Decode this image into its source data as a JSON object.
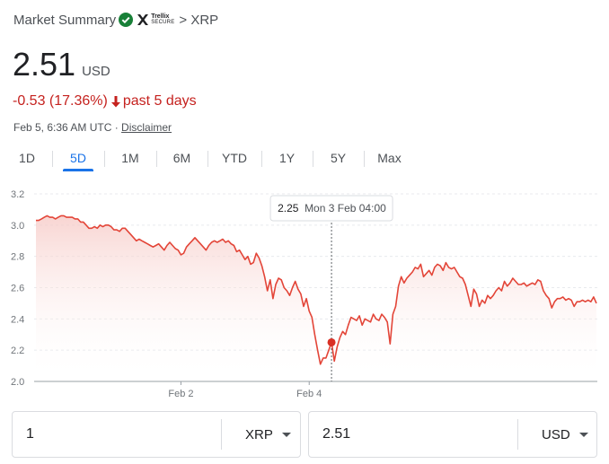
{
  "header": {
    "title": "Market Summary",
    "brand_line1": "Trellix",
    "brand_line2": "SECURE",
    "crumb": "> XRP"
  },
  "quote": {
    "price": "2.51",
    "currency": "USD",
    "change": "-0.53 (17.36%)",
    "period": "past 5 days",
    "timestamp": "Feb 5, 6:36 AM UTC · ",
    "disclaimer": "Disclaimer"
  },
  "tabs": [
    {
      "label": "1D",
      "selected": false
    },
    {
      "label": "5D",
      "selected": true
    },
    {
      "label": "1M",
      "selected": false
    },
    {
      "label": "6M",
      "selected": false
    },
    {
      "label": "YTD",
      "selected": false
    },
    {
      "label": "1Y",
      "selected": false
    },
    {
      "label": "5Y",
      "selected": false
    },
    {
      "label": "Max",
      "selected": false
    }
  ],
  "chart_data": {
    "type": "area",
    "y_ticks": [
      "3.2",
      "3.0",
      "2.8",
      "2.6",
      "2.4",
      "2.2",
      "2.0"
    ],
    "ylim": [
      2.0,
      3.2
    ],
    "x_ticks": [
      {
        "label": "Feb 2",
        "index": 52
      },
      {
        "label": "Feb 4",
        "index": 98
      }
    ],
    "values": [
      3.03,
      3.03,
      3.04,
      3.05,
      3.06,
      3.05,
      3.05,
      3.04,
      3.05,
      3.06,
      3.06,
      3.05,
      3.05,
      3.05,
      3.04,
      3.04,
      3.02,
      3.02,
      3.0,
      2.98,
      2.98,
      2.99,
      2.98,
      3.0,
      2.99,
      3.0,
      3.0,
      2.99,
      2.97,
      2.97,
      2.96,
      2.98,
      2.98,
      2.96,
      2.94,
      2.92,
      2.9,
      2.91,
      2.9,
      2.89,
      2.88,
      2.87,
      2.86,
      2.87,
      2.88,
      2.86,
      2.84,
      2.87,
      2.89,
      2.87,
      2.85,
      2.84,
      2.81,
      2.82,
      2.86,
      2.88,
      2.9,
      2.92,
      2.9,
      2.88,
      2.86,
      2.84,
      2.87,
      2.89,
      2.9,
      2.89,
      2.9,
      2.91,
      2.89,
      2.9,
      2.88,
      2.87,
      2.83,
      2.84,
      2.81,
      2.78,
      2.8,
      2.75,
      2.76,
      2.82,
      2.79,
      2.74,
      2.67,
      2.58,
      2.65,
      2.53,
      2.62,
      2.66,
      2.65,
      2.6,
      2.58,
      2.55,
      2.6,
      2.64,
      2.59,
      2.56,
      2.48,
      2.53,
      2.45,
      2.41,
      2.3,
      2.2,
      2.11,
      2.15,
      2.15,
      2.2,
      2.25,
      2.13,
      2.22,
      2.28,
      2.32,
      2.3,
      2.36,
      2.41,
      2.4,
      2.39,
      2.42,
      2.36,
      2.4,
      2.39,
      2.38,
      2.43,
      2.4,
      2.39,
      2.43,
      2.41,
      2.38,
      2.24,
      2.43,
      2.48,
      2.61,
      2.67,
      2.63,
      2.66,
      2.68,
      2.7,
      2.73,
      2.72,
      2.75,
      2.67,
      2.69,
      2.71,
      2.68,
      2.73,
      2.75,
      2.74,
      2.71,
      2.76,
      2.73,
      2.72,
      2.73,
      2.7,
      2.67,
      2.66,
      2.62,
      2.55,
      2.48,
      2.59,
      2.56,
      2.48,
      2.52,
      2.5,
      2.55,
      2.53,
      2.55,
      2.58,
      2.6,
      2.58,
      2.64,
      2.61,
      2.63,
      2.66,
      2.64,
      2.62,
      2.62,
      2.63,
      2.61,
      2.62,
      2.63,
      2.62,
      2.65,
      2.64,
      2.58,
      2.55,
      2.53,
      2.47,
      2.51,
      2.53,
      2.53,
      2.54,
      2.52,
      2.53,
      2.52,
      2.48,
      2.51,
      2.51,
      2.52,
      2.51,
      2.52,
      2.51,
      2.54,
      2.5
    ],
    "hover": {
      "index": 106,
      "value": "2.25",
      "label": "Mon 3 Feb 04:00"
    },
    "line_color": "#e34538"
  },
  "converter": {
    "from_amount": "1",
    "from_unit": "XRP",
    "to_amount": "2.51",
    "to_unit": "USD"
  }
}
